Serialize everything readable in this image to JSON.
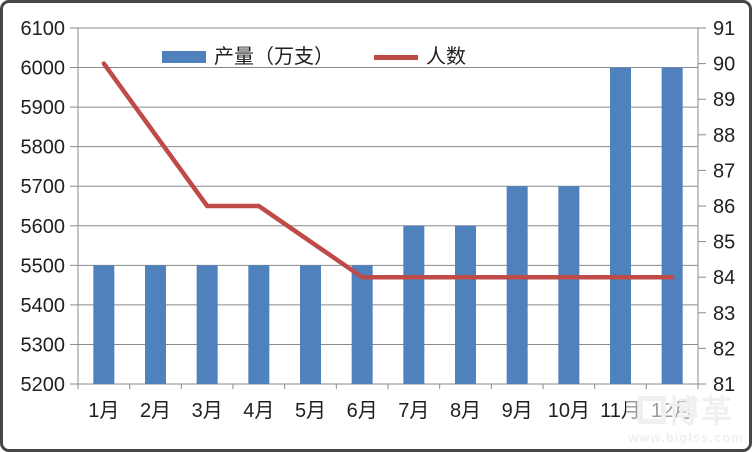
{
  "chart_data": {
    "type": "combo",
    "title": "",
    "categories": [
      "1月",
      "2月",
      "3月",
      "4月",
      "5月",
      "6月",
      "7月",
      "8月",
      "9月",
      "10月",
      "11月",
      "12月"
    ],
    "series": [
      {
        "name": "产量（万支）",
        "type": "bar",
        "axis": "left",
        "color": "#4F81BD",
        "values": [
          5500,
          5500,
          5500,
          5500,
          5500,
          5500,
          5600,
          5600,
          5700,
          5700,
          6000,
          6000
        ]
      },
      {
        "name": "人数",
        "type": "line",
        "axis": "right",
        "color": "#BE4B48",
        "values": [
          90,
          88,
          86,
          86,
          85,
          84,
          84,
          84,
          84,
          84,
          84,
          84
        ]
      }
    ],
    "left_axis": {
      "min": 5200,
      "max": 6100,
      "step": 100,
      "tick_labels": [
        "6100",
        "6000",
        "5900",
        "5800",
        "5700",
        "5600",
        "5500",
        "5400",
        "5300",
        "5200"
      ]
    },
    "right_axis": {
      "min": 81,
      "max": 91,
      "step": 1,
      "tick_labels": [
        "91",
        "90",
        "89",
        "88",
        "87",
        "86",
        "85",
        "84",
        "83",
        "82",
        "81"
      ]
    },
    "grid": true,
    "legend_position": "top-center",
    "grid_color": "#8A8A8A",
    "axis_color": "#8A8A8A",
    "label_color": "#1F1F1F"
  },
  "watermark": {
    "logo_text": "博革",
    "url": "www.biglss.com"
  }
}
